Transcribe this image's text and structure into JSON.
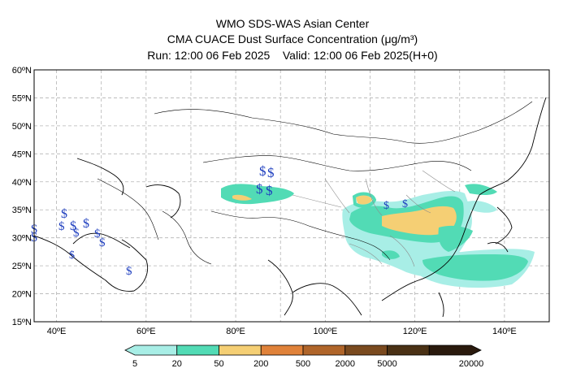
{
  "header": {
    "line1": "WMO SDS-WAS Asian Center",
    "line2": "CMA CUACE Dust Surface Concentration (μg/m³)",
    "line3_run": "Run: 12:00 06 Feb 2025",
    "line3_valid": "Valid: 12:00 06 Feb 2025(H+0)"
  },
  "map": {
    "lon_range": [
      35,
      150
    ],
    "lat_range": [
      15,
      60
    ],
    "lat_ticks": [
      "15ºN",
      "20ºN",
      "25ºN",
      "30ºN",
      "35ºN",
      "40ºN",
      "45ºN",
      "50ºN",
      "55ºN",
      "60ºN"
    ],
    "lon_ticks": [
      "40ºE",
      "60ºE",
      "80ºE",
      "100ºE",
      "120ºE",
      "140ºE"
    ],
    "grid": true,
    "dust_symbol": "$"
  },
  "colorbar": {
    "labels": [
      "5",
      "20",
      "50",
      "200",
      "500",
      "2000",
      "5000",
      "20000"
    ],
    "colors": [
      "#a8eee6",
      "#52dbb5",
      "#f5cf74",
      "#e0823a",
      "#b0652a",
      "#7a4a1f",
      "#4a3115",
      "#2a1a0d"
    ]
  },
  "colors": {
    "dust_low": "#a8eee6",
    "dust_mid": "#52dbb5",
    "dust_high": "#f5cf74",
    "symbol": "#1f3fbf",
    "grid": "#b4b4b4"
  }
}
